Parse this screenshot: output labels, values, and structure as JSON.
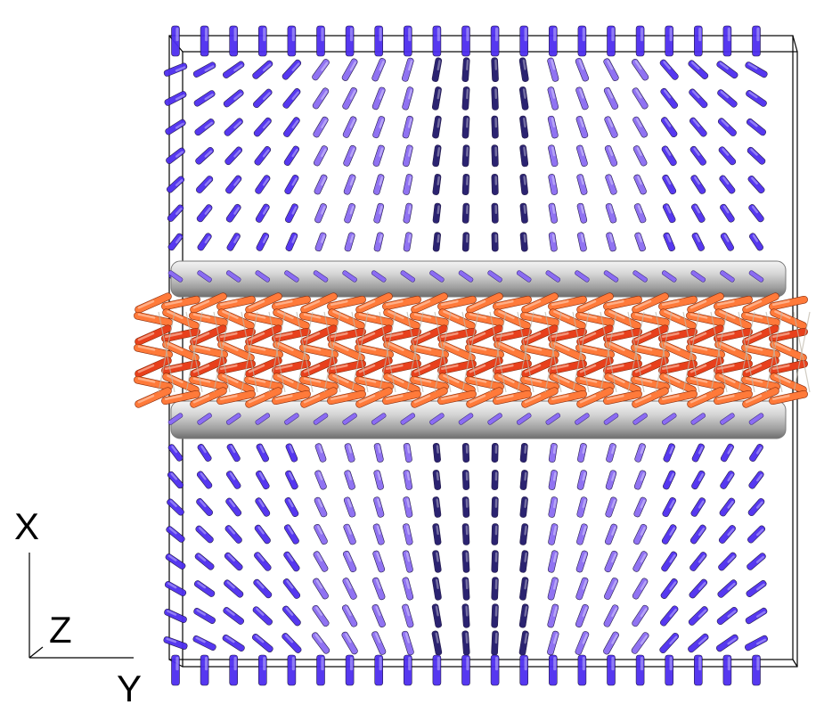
{
  "axes": {
    "x_label": "X",
    "y_label": "Y",
    "z_label": "Z"
  },
  "colors": {
    "background": "#ffffff",
    "director_blue": "#4d2ef0",
    "director_dark": "#20186a",
    "director_light": "#8b6cf2",
    "defect_core_orange": "#ff7a3a",
    "defect_core_red": "#e8401c",
    "cylinder_gray": "#cfcfcf",
    "box_outline": "#000000"
  }
}
